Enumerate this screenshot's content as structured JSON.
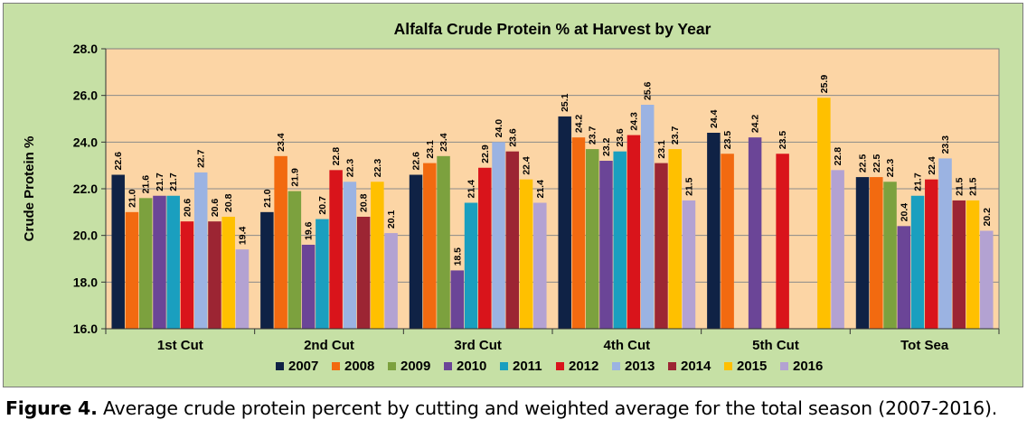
{
  "chart_data": {
    "type": "bar",
    "title": "Alfalfa Crude Protein % at Harvest by Year",
    "ylabel": "Crude Protein %",
    "xlabel": "",
    "ylim": [
      16.0,
      28.0
    ],
    "yticks": [
      "16.0",
      "18.0",
      "20.0",
      "22.0",
      "24.0",
      "26.0",
      "28.0"
    ],
    "grid": true,
    "legend_position": "bottom",
    "categories": [
      "1st Cut",
      "2nd Cut",
      "3rd Cut",
      "4th Cut",
      "5th Cut",
      "Tot Sea"
    ],
    "series": [
      {
        "name": "2007",
        "color": "#0f2245",
        "values": [
          22.6,
          21.0,
          22.6,
          25.1,
          24.4,
          22.5
        ]
      },
      {
        "name": "2008",
        "color": "#f26a10",
        "values": [
          21.0,
          23.4,
          23.1,
          24.2,
          23.5,
          22.5
        ]
      },
      {
        "name": "2009",
        "color": "#7ca13e",
        "values": [
          21.6,
          21.9,
          23.4,
          23.7,
          null,
          22.3
        ]
      },
      {
        "name": "2010",
        "color": "#6b4597",
        "values": [
          21.7,
          19.6,
          18.5,
          23.2,
          24.2,
          20.4
        ]
      },
      {
        "name": "2011",
        "color": "#1a9fbf",
        "values": [
          21.7,
          20.7,
          21.4,
          23.6,
          null,
          21.7
        ]
      },
      {
        "name": "2012",
        "color": "#d9141b",
        "values": [
          20.6,
          22.8,
          22.9,
          24.3,
          23.5,
          22.4
        ]
      },
      {
        "name": "2013",
        "color": "#9bb3e2",
        "values": [
          22.7,
          22.3,
          24.0,
          25.6,
          null,
          23.3
        ]
      },
      {
        "name": "2014",
        "color": "#9c2533",
        "values": [
          20.6,
          20.8,
          23.6,
          23.1,
          null,
          21.5
        ]
      },
      {
        "name": "2015",
        "color": "#ffc000",
        "values": [
          20.8,
          22.3,
          22.4,
          23.7,
          25.9,
          21.5
        ]
      },
      {
        "name": "2016",
        "color": "#b3a2d2",
        "values": [
          19.4,
          20.1,
          21.4,
          21.5,
          22.8,
          20.2
        ]
      }
    ],
    "plot_background": "#fcd5a5",
    "outer_background": "#c6e0a5"
  },
  "caption": {
    "label": "Figure 4.",
    "text": "Average crude protein percent by cutting and weighted average for the total season (2007-2016)."
  }
}
